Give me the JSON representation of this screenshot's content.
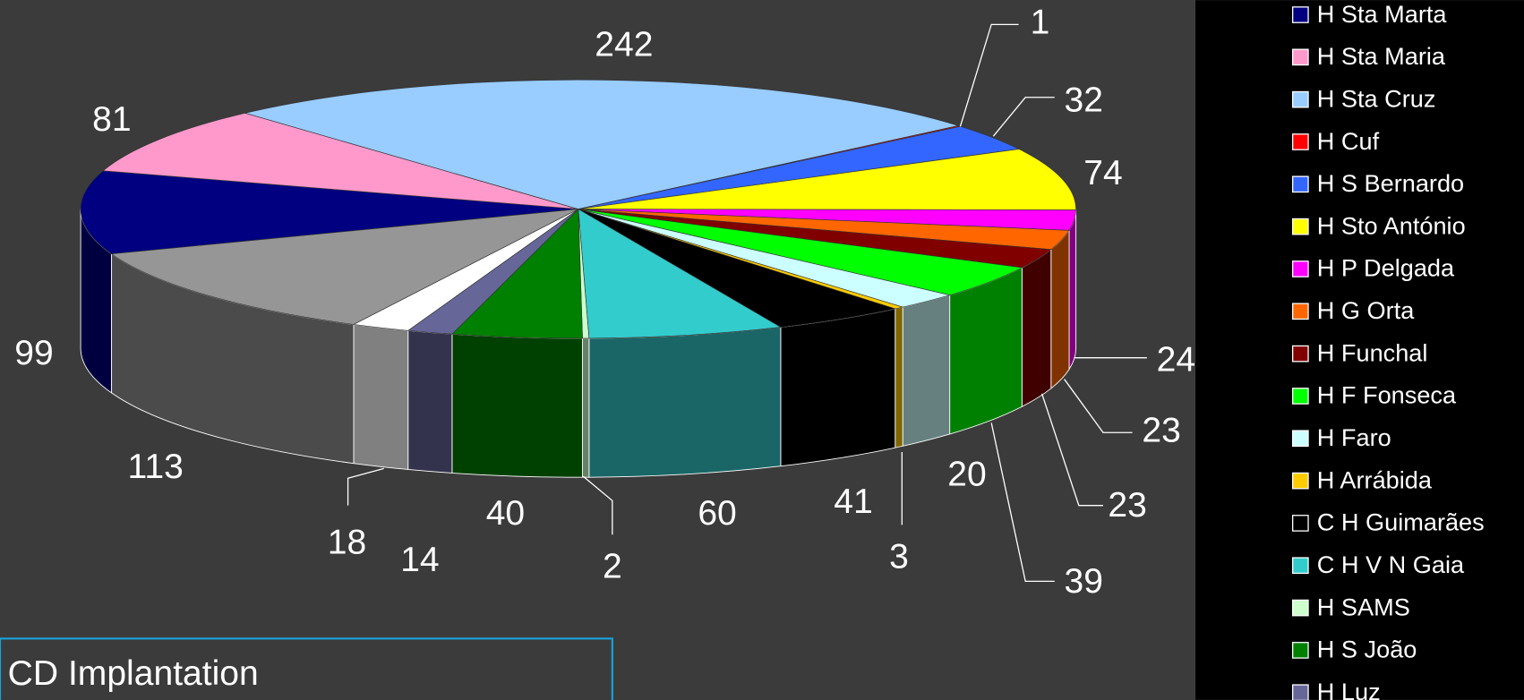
{
  "chart_data": {
    "type": "pie",
    "title": "CD Implantation",
    "categories": [
      "H Sta Marta",
      "H Sta Maria",
      "H Sta Cruz",
      "H Cuf",
      "H S Bernardo",
      "H Sto António",
      "H P Delgada",
      "H G Orta",
      "H Funchal",
      "H F Fonseca",
      "H Faro",
      "H Arrábida",
      "C H Guimarães",
      "C H V N Gaia",
      "H SAMS",
      "H S João",
      "H Luz",
      null,
      null
    ],
    "values": [
      99,
      81,
      242,
      1,
      32,
      74,
      24,
      23,
      23,
      39,
      20,
      3,
      41,
      60,
      2,
      40,
      14,
      18,
      113
    ],
    "colors": [
      "#000080",
      "#ff99cc",
      "#99ccff",
      "#ff0000",
      "#3366ff",
      "#ffff00",
      "#ff00ff",
      "#ff6600",
      "#800000",
      "#00ff00",
      "#ccffff",
      "#ffcc00",
      "#000000",
      "#33cccc",
      "#ccffcc",
      "#008000",
      "#666699",
      "#ffffff",
      "#969696"
    ]
  }
}
